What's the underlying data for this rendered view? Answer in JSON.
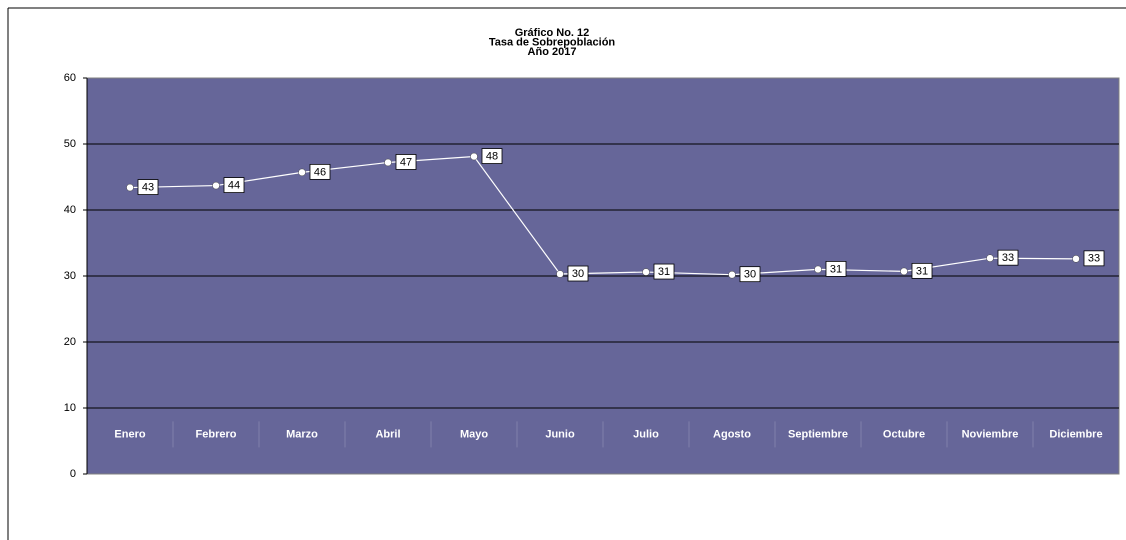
{
  "chart_data": {
    "type": "line",
    "title_lines": [
      "Gráfico No. 12",
      "Tasa de Sobrepoblación",
      "Año 2017"
    ],
    "categories": [
      "Enero",
      "Febrero",
      "Marzo",
      "Abril",
      "Mayo",
      "Junio",
      "Julio",
      "Agosto",
      "Septiembre",
      "Octubre",
      "Noviembre",
      "Diciembre"
    ],
    "series": [
      {
        "color": "#ffffff",
        "values": [
          43.4,
          43.7,
          45.7,
          47.2,
          48.1,
          30.3,
          30.6,
          30.2,
          31.0,
          30.7,
          32.7,
          32.6
        ],
        "value_labels": [
          "43",
          "44",
          "46",
          "47",
          "48",
          "30",
          "31",
          "30",
          "31",
          "31",
          "33",
          "33"
        ]
      }
    ],
    "ylim": [
      0,
      60
    ],
    "yticks": [
      0,
      10,
      20,
      30,
      40,
      50,
      60
    ],
    "grid": true,
    "plot_background": "#666699"
  }
}
